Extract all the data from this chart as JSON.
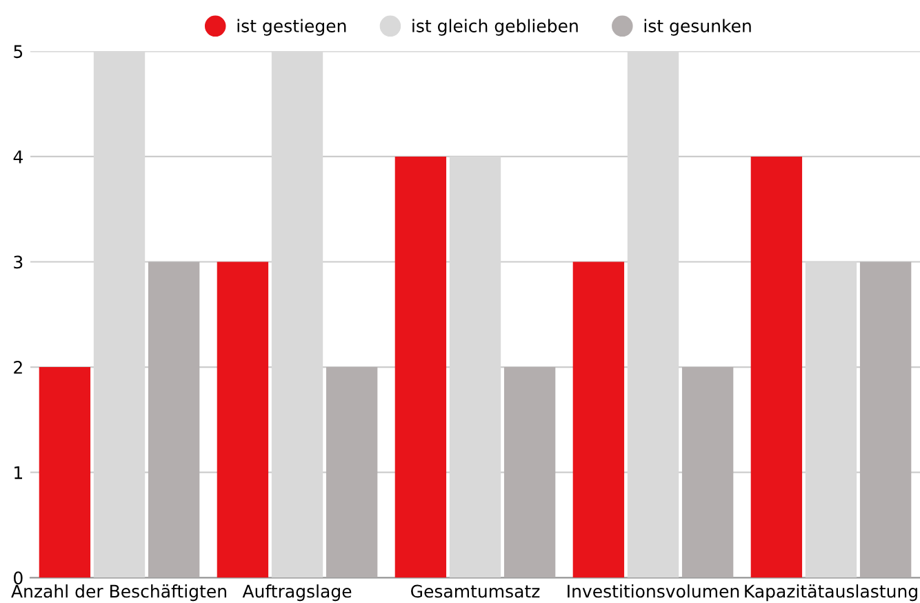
{
  "chart_data": {
    "type": "bar",
    "categories": [
      "Anzahl der Beschäftigten",
      "Auftragslage",
      "Gesamtumsatz",
      "Investitionsvolumen",
      "Kapazitätauslastung"
    ],
    "series": [
      {
        "name": "ist gestiegen",
        "color": "#e8141a",
        "values": [
          2,
          3,
          4,
          3,
          4
        ]
      },
      {
        "name": "ist gleich geblieben",
        "color": "#d9d9d9",
        "values": [
          5,
          5,
          4,
          5,
          3
        ]
      },
      {
        "name": "ist gesunken",
        "color": "#b3aeae",
        "values": [
          3,
          2,
          2,
          2,
          3
        ]
      }
    ],
    "ylim": [
      0,
      5
    ],
    "yticks": [
      0,
      1,
      2,
      3,
      4,
      5
    ],
    "grid": "y",
    "legend": "top",
    "marker": "circle"
  }
}
